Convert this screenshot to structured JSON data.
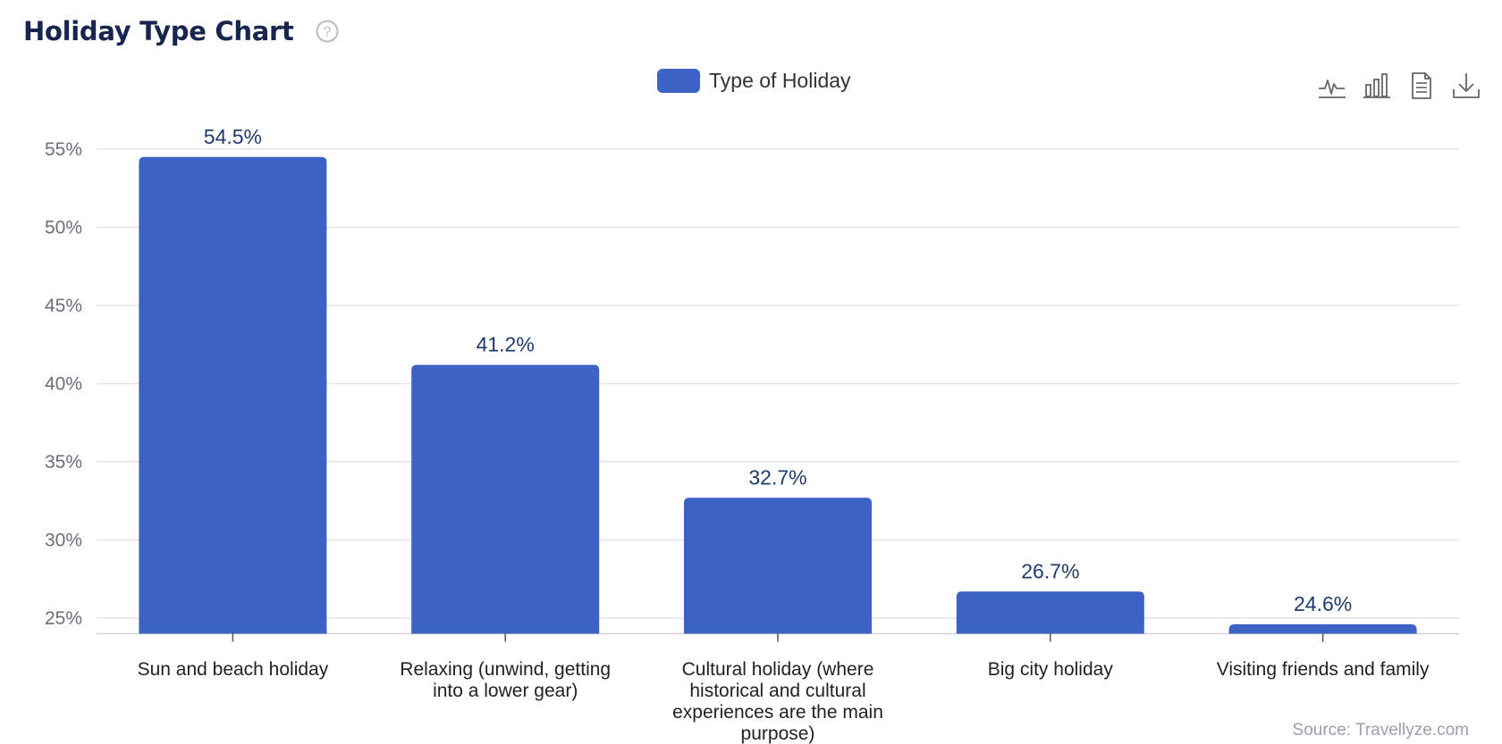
{
  "header": {
    "title": "Holiday Type Chart"
  },
  "legend": {
    "label": "Type of Holiday"
  },
  "toolbar": {
    "icons": [
      "line-chart-icon",
      "bar-chart-icon",
      "document-icon",
      "download-icon"
    ]
  },
  "colors": {
    "bar": "#3b62c4",
    "title": "#17254f",
    "value_label": "#1f3a6e",
    "grid": "#e3e5ee",
    "tick_text": "#6b6f7a",
    "category_text": "#222222"
  },
  "source": "Source: Travellyze.com",
  "chart_data": {
    "type": "bar",
    "title": "Holiday Type Chart",
    "xlabel": "",
    "ylabel": "",
    "categories": [
      "Sun and beach holiday",
      "Relaxing (unwind, getting into a lower gear)",
      "Cultural holiday (where historical and cultural experiences are the main purpose)",
      "Big city holiday",
      "Visiting friends and family"
    ],
    "category_lines": [
      [
        "Sun and beach holiday"
      ],
      [
        "Relaxing (unwind, getting",
        "into a lower gear)"
      ],
      [
        "Cultural holiday (where",
        "historical and cultural",
        "experiences are the main",
        "purpose)"
      ],
      [
        "Big city holiday"
      ],
      [
        "Visiting friends and family"
      ]
    ],
    "series": [
      {
        "name": "Type of Holiday",
        "values": [
          54.5,
          41.2,
          32.7,
          26.7,
          24.6
        ]
      }
    ],
    "value_labels": [
      "54.5%",
      "41.2%",
      "32.7%",
      "26.7%",
      "24.6%"
    ],
    "ylim": [
      24,
      55
    ],
    "yticks": [
      25,
      30,
      35,
      40,
      45,
      50,
      55
    ],
    "ytick_labels": [
      "25%",
      "30%",
      "35%",
      "40%",
      "45%",
      "50%",
      "55%"
    ],
    "grid": true,
    "legend_position": "top-center"
  }
}
